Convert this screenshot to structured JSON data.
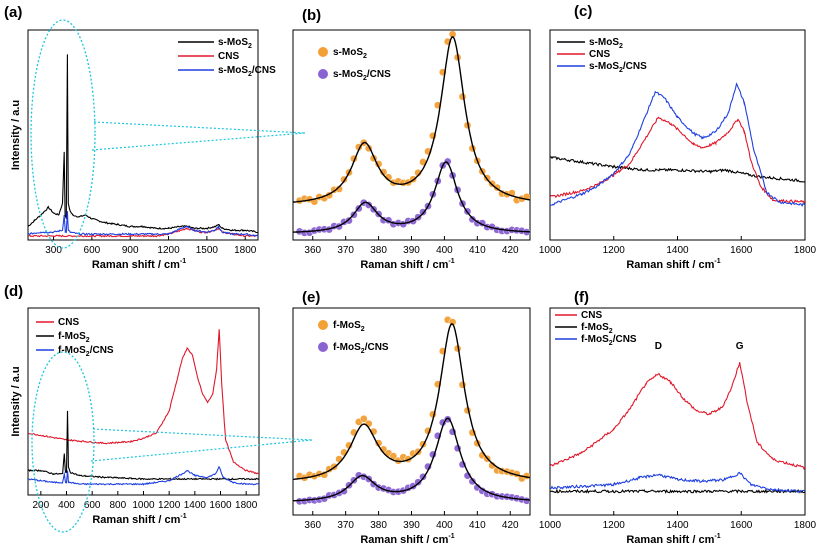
{
  "figure": {
    "panel_labels": [
      "(a)",
      "(b)",
      "(c)",
      "(d)",
      "(e)",
      "(f)"
    ]
  },
  "colors": {
    "black": "#000000",
    "red": "#e0182b",
    "blue": "#1f3fe0",
    "orange": "#f3a035",
    "purple": "#8a63d2",
    "cyan": "#1cc6dd"
  },
  "chart_data": [
    {
      "panel": "(a)",
      "type": "line",
      "xlabel": "Raman shift / cm",
      "xlabel_sup": "-1",
      "ylabel": "Intensity / a.u",
      "xlim": [
        100,
        1900
      ],
      "ylim": [
        0,
        100
      ],
      "xticks": [
        "300",
        "600",
        "900",
        "1200",
        "1500",
        "1800"
      ],
      "legend": [
        {
          "name": "s-MoS",
          "sub": "2"
        },
        {
          "name": "CNS",
          "sub": ""
        },
        {
          "name": "s-MoS",
          "sub": "2",
          "suffix": "/CNS"
        }
      ],
      "series": [
        {
          "name": "s-MoS2",
          "color": "#000000",
          "x": [
            100,
            150,
            200,
            260,
            300,
            340,
            370,
            383,
            390,
            400,
            408,
            415,
            430,
            450,
            500,
            550,
            600,
            700,
            800,
            900,
            1000,
            1100,
            1200,
            1300,
            1350,
            1400,
            1500,
            1570,
            1590,
            1620,
            1700,
            1800,
            1900
          ],
          "y": [
            6,
            9,
            12,
            16,
            13,
            12,
            18,
            45,
            12,
            10,
            96,
            18,
            14,
            12,
            11,
            12,
            10,
            8,
            7,
            6,
            6,
            5,
            5,
            6,
            6,
            5,
            5,
            6,
            7,
            5,
            4,
            4,
            3
          ]
        },
        {
          "name": "CNS",
          "color": "#e0182b",
          "x": [
            100,
            300,
            600,
            900,
            1100,
            1200,
            1300,
            1340,
            1400,
            1450,
            1500,
            1560,
            1590,
            1620,
            1700,
            1800,
            1900
          ],
          "y": [
            1,
            1,
            1,
            1,
            1,
            2,
            4,
            5,
            4,
            3,
            3,
            4,
            5,
            3,
            2,
            1,
            1
          ]
        },
        {
          "name": "s-MoS2/CNS",
          "color": "#1f3fe0",
          "x": [
            100,
            200,
            300,
            370,
            383,
            392,
            400,
            408,
            415,
            430,
            500,
            600,
            900,
            1200,
            1300,
            1340,
            1400,
            1500,
            1560,
            1590,
            1620,
            1700,
            1800,
            1900
          ],
          "y": [
            2,
            3,
            3,
            4,
            12,
            3,
            3,
            14,
            4,
            3,
            2,
            2,
            2,
            2,
            5,
            6,
            4,
            3,
            4,
            6,
            3,
            2,
            2,
            1
          ]
        }
      ]
    },
    {
      "panel": "(b)",
      "type": "scatter+fit",
      "xlabel": "Raman shift / cm",
      "xlabel_sup": "-1",
      "xlim": [
        354,
        426
      ],
      "ylim": [
        0,
        100
      ],
      "xticks": [
        "360",
        "370",
        "380",
        "390",
        "400",
        "410",
        "420"
      ],
      "legend": [
        {
          "name": "s-MoS",
          "sub": "2"
        },
        {
          "name": "s-MoS",
          "sub": "2",
          "suffix": "/CNS"
        }
      ],
      "series": [
        {
          "name": "s-MoS2",
          "color": "#f3a035",
          "base": 16,
          "peaks": [
            [
              375.7,
              30,
              4.8
            ],
            [
              402.0,
              88,
              4.5
            ]
          ],
          "fit_peaks": [
            [
              375.7,
              30,
              4.8
            ],
            [
              402.5,
              85,
              4.5
            ]
          ],
          "noise": 3
        },
        {
          "name": "s-MoS2/CNS",
          "color": "#8a63d2",
          "base": 2,
          "peaks": [
            [
              376.0,
              15,
              4.5
            ],
            [
              400.5,
              36,
              4.2
            ]
          ],
          "fit_peaks": [
            [
              376.0,
              15,
              4.5
            ],
            [
              400.5,
              36,
              4.2
            ]
          ],
          "noise": 1.5
        }
      ]
    },
    {
      "panel": "(c)",
      "type": "line",
      "xlabel": "Raman shift / cm",
      "xlabel_sup": "-1",
      "xlim": [
        1000,
        1800
      ],
      "ylim": [
        0,
        100
      ],
      "xticks": [
        "1000",
        "1200",
        "1400",
        "1600",
        "1800"
      ],
      "legend": [
        {
          "name": "s-MoS",
          "sub": "2"
        },
        {
          "name": "CNS",
          "sub": ""
        },
        {
          "name": "s-MoS",
          "sub": "2",
          "suffix": "/CNS"
        }
      ],
      "series": [
        {
          "name": "s-MoS2",
          "color": "#000000",
          "x": [
            1000,
            1100,
            1200,
            1300,
            1400,
            1500,
            1550,
            1600,
            1650,
            1700,
            1800
          ],
          "y": [
            40,
            37,
            34,
            32,
            32,
            31,
            32,
            30,
            28,
            27,
            25
          ]
        },
        {
          "name": "CNS",
          "color": "#e0182b",
          "x": [
            1000,
            1100,
            1150,
            1200,
            1250,
            1300,
            1340,
            1380,
            1420,
            1450,
            1480,
            1520,
            1560,
            1590,
            1610,
            1630,
            1660,
            1700,
            1800
          ],
          "y": [
            15,
            19,
            23,
            29,
            36,
            52,
            65,
            61,
            54,
            48,
            46,
            49,
            56,
            64,
            56,
            38,
            22,
            13,
            12
          ]
        },
        {
          "name": "s-MoS2/CNS",
          "color": "#1f3fe0",
          "x": [
            1000,
            1100,
            1150,
            1200,
            1250,
            1300,
            1330,
            1360,
            1400,
            1450,
            1480,
            1520,
            1560,
            1585,
            1610,
            1640,
            1680,
            1720,
            1800
          ],
          "y": [
            10,
            17,
            22,
            30,
            42,
            66,
            81,
            77,
            65,
            55,
            52,
            56,
            68,
            86,
            74,
            44,
            18,
            12,
            10
          ]
        }
      ]
    },
    {
      "panel": "(d)",
      "type": "line",
      "xlabel": "Raman shift / cm",
      "xlabel_sup": "-1",
      "ylabel": "Intensity / a.u",
      "xlim": [
        100,
        1900
      ],
      "ylim": [
        0,
        100
      ],
      "xticks": [
        "200",
        "400",
        "600",
        "800",
        "1000",
        "1200",
        "1400",
        "1600",
        "1800"
      ],
      "legend": [
        {
          "name": "CNS",
          "sub": ""
        },
        {
          "name": "f-MoS",
          "sub": "2"
        },
        {
          "name": "f-MoS",
          "sub": "2",
          "suffix": "/CNS"
        }
      ],
      "series": [
        {
          "name": "CNS",
          "color": "#e0182b",
          "x": [
            100,
            400,
            700,
            900,
            1000,
            1100,
            1200,
            1250,
            1300,
            1340,
            1380,
            1420,
            1460,
            1500,
            1540,
            1570,
            1590,
            1610,
            1640,
            1700,
            1800,
            1900
          ],
          "y": [
            32,
            28,
            26,
            27,
            29,
            32,
            45,
            60,
            75,
            82,
            78,
            65,
            55,
            50,
            55,
            70,
            93,
            60,
            28,
            15,
            10,
            8
          ]
        },
        {
          "name": "f-MoS2",
          "color": "#000000",
          "x": [
            100,
            200,
            300,
            370,
            383,
            392,
            400,
            408,
            415,
            430,
            500,
            700,
            1000,
            1300,
            1600,
            1900
          ],
          "y": [
            10,
            10,
            8,
            8,
            20,
            9,
            9,
            45,
            12,
            9,
            7,
            6,
            5,
            5,
            5,
            5
          ]
        },
        {
          "name": "f-MoS2/CNS",
          "color": "#1f3fe0",
          "x": [
            100,
            200,
            300,
            370,
            383,
            392,
            400,
            408,
            415,
            430,
            500,
            600,
            800,
            1000,
            1200,
            1300,
            1340,
            1400,
            1500,
            1560,
            1590,
            1620,
            1700,
            1800,
            1900
          ],
          "y": [
            5,
            4,
            3,
            3,
            8,
            3,
            3,
            10,
            3,
            3,
            2,
            2,
            2,
            2,
            4,
            8,
            10,
            7,
            6,
            8,
            12,
            6,
            3,
            2,
            2
          ]
        }
      ]
    },
    {
      "panel": "(e)",
      "type": "scatter+fit",
      "xlabel": "Raman shift / cm",
      "xlabel_sup": "-1",
      "xlim": [
        354,
        426
      ],
      "ylim": [
        0,
        100
      ],
      "xticks": [
        "360",
        "370",
        "380",
        "390",
        "400",
        "410",
        "420"
      ],
      "legend": [
        {
          "name": "f-MoS",
          "sub": "2"
        },
        {
          "name": "f-MoS",
          "sub": "2",
          "suffix": "/CNS"
        }
      ],
      "series": [
        {
          "name": "f-MoS2",
          "color": "#f3a035",
          "base": 12,
          "peaks": [
            [
              375.5,
              32,
              5.2
            ],
            [
              401.8,
              86,
              4.5
            ]
          ],
          "fit_peaks": [
            [
              375.5,
              29,
              5.2
            ],
            [
              402.3,
              83,
              4.6
            ]
          ],
          "noise": 3
        },
        {
          "name": "f-MoS2/CNS",
          "color": "#8a63d2",
          "base": 2,
          "peaks": [
            [
              375.0,
              13,
              5.0
            ],
            [
              400.5,
              44,
              4.6
            ]
          ],
          "fit_peaks": [
            [
              375.0,
              13,
              5.0
            ],
            [
              401.0,
              44,
              4.6
            ]
          ],
          "noise": 1.5
        }
      ]
    },
    {
      "panel": "(f)",
      "type": "line",
      "xlabel": "Raman shift / cm",
      "xlabel_sup": "-1",
      "xlim": [
        1000,
        1800
      ],
      "ylim": [
        0,
        100
      ],
      "xticks": [
        "1000",
        "1200",
        "1400",
        "1600",
        "1800"
      ],
      "legend": [
        {
          "name": "CNS",
          "sub": ""
        },
        {
          "name": "f-MoS",
          "sub": "2"
        },
        {
          "name": "f-MoS",
          "sub": "2",
          "suffix": "/CNS"
        }
      ],
      "annotations": [
        {
          "text": "D",
          "x": 1340,
          "y": 88
        },
        {
          "text": "G",
          "x": 1595,
          "y": 88
        }
      ],
      "series": [
        {
          "name": "CNS",
          "color": "#e0182b",
          "x": [
            1000,
            1100,
            1150,
            1200,
            1250,
            1300,
            1340,
            1380,
            1420,
            1460,
            1500,
            1540,
            1570,
            1595,
            1620,
            1650,
            1700,
            1800
          ],
          "y": [
            18,
            26,
            33,
            40,
            52,
            67,
            73,
            68,
            58,
            51,
            49,
            53,
            65,
            80,
            55,
            32,
            22,
            17
          ]
        },
        {
          "name": "f-MoS2",
          "color": "#000000",
          "x": [
            1000,
            1400,
            1800
          ],
          "y": [
            3,
            3,
            3
          ]
        },
        {
          "name": "f-MoS2/CNS",
          "color": "#1f3fe0",
          "x": [
            1000,
            1100,
            1200,
            1280,
            1340,
            1400,
            1480,
            1550,
            1595,
            1630,
            1700,
            1800
          ],
          "y": [
            5,
            6,
            7,
            11,
            13,
            10,
            9,
            10,
            14,
            7,
            4,
            3
          ]
        }
      ]
    }
  ]
}
